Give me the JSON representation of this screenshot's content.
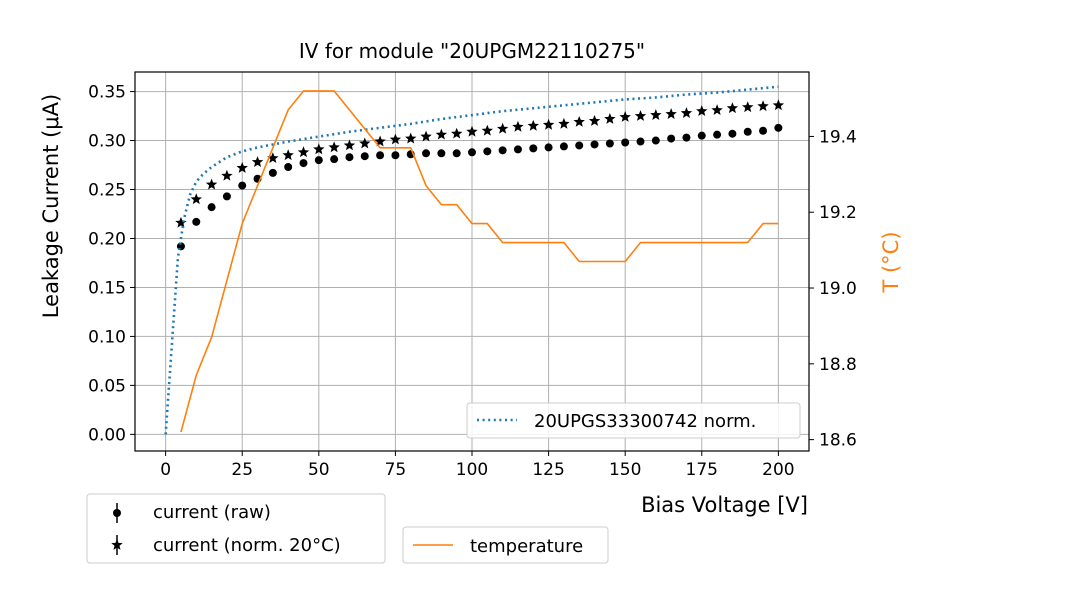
{
  "chart_data": {
    "type": "line",
    "title": "IV for module \"20UPGM22110275\"",
    "xlabel": "Bias Voltage [V]",
    "ylabel": "Leakage Current (μA)",
    "y2label": "T (°C)",
    "xlim": [
      -10,
      210
    ],
    "ylim": [
      -0.017,
      0.37
    ],
    "y2lim": [
      18.57,
      19.57
    ],
    "grid": true,
    "x_ticks": [
      0,
      25,
      50,
      75,
      100,
      125,
      150,
      175,
      200
    ],
    "x_tick_labels": [
      "0",
      "25",
      "50",
      "75",
      "100",
      "125",
      "150",
      "175",
      "200"
    ],
    "y_ticks": [
      0.0,
      0.05,
      0.1,
      0.15,
      0.2,
      0.25,
      0.3,
      0.35
    ],
    "y_tick_labels": [
      "0.00",
      "0.05",
      "0.10",
      "0.15",
      "0.20",
      "0.25",
      "0.30",
      "0.35"
    ],
    "y2_ticks": [
      18.6,
      18.8,
      19.0,
      19.2,
      19.4
    ],
    "y2_tick_labels": [
      "18.6",
      "18.8",
      "19.0",
      "19.2",
      "19.4"
    ],
    "colors": {
      "axis": "#000000",
      "grid": "#b0b0b0",
      "reference": "#1f77b4",
      "temperature": "#ff7f0e",
      "markers": "#000000"
    },
    "series": [
      {
        "name": "current (raw)",
        "marker": "circle",
        "axis": "left",
        "x": [
          5,
          10,
          15,
          20,
          25,
          30,
          35,
          40,
          45,
          50,
          55,
          60,
          65,
          70,
          75,
          80,
          85,
          90,
          95,
          100,
          105,
          110,
          115,
          120,
          125,
          130,
          135,
          140,
          145,
          150,
          155,
          160,
          165,
          170,
          175,
          180,
          185,
          190,
          195,
          200
        ],
        "values": [
          0.192,
          0.217,
          0.232,
          0.243,
          0.254,
          0.261,
          0.267,
          0.273,
          0.277,
          0.28,
          0.281,
          0.283,
          0.284,
          0.285,
          0.285,
          0.286,
          0.287,
          0.287,
          0.287,
          0.288,
          0.289,
          0.29,
          0.291,
          0.292,
          0.293,
          0.294,
          0.295,
          0.296,
          0.297,
          0.298,
          0.299,
          0.3,
          0.302,
          0.303,
          0.305,
          0.306,
          0.307,
          0.309,
          0.31,
          0.313
        ]
      },
      {
        "name": "current (norm. 20°C)",
        "marker": "star",
        "axis": "left",
        "x": [
          5,
          10,
          15,
          20,
          25,
          30,
          35,
          40,
          45,
          50,
          55,
          60,
          65,
          70,
          75,
          80,
          85,
          90,
          95,
          100,
          105,
          110,
          115,
          120,
          125,
          130,
          135,
          140,
          145,
          150,
          155,
          160,
          165,
          170,
          175,
          180,
          185,
          190,
          195,
          200
        ],
        "values": [
          0.216,
          0.24,
          0.255,
          0.264,
          0.272,
          0.278,
          0.282,
          0.285,
          0.288,
          0.291,
          0.293,
          0.295,
          0.297,
          0.299,
          0.301,
          0.302,
          0.304,
          0.306,
          0.307,
          0.309,
          0.31,
          0.312,
          0.314,
          0.315,
          0.316,
          0.317,
          0.319,
          0.32,
          0.322,
          0.324,
          0.325,
          0.326,
          0.327,
          0.328,
          0.33,
          0.331,
          0.333,
          0.334,
          0.335,
          0.336
        ]
      },
      {
        "name": "20UPGS33300742 norm.",
        "style": "dotted",
        "axis": "left",
        "x": [
          0,
          2,
          4,
          6,
          8,
          10,
          12,
          15,
          18,
          20,
          25,
          30,
          35,
          40,
          50,
          60,
          70,
          80,
          90,
          100,
          110,
          120,
          130,
          140,
          150,
          160,
          170,
          180,
          190,
          200
        ],
        "values": [
          0.0,
          0.09,
          0.18,
          0.22,
          0.245,
          0.258,
          0.265,
          0.273,
          0.279,
          0.283,
          0.289,
          0.293,
          0.296,
          0.299,
          0.304,
          0.309,
          0.313,
          0.317,
          0.322,
          0.326,
          0.33,
          0.333,
          0.336,
          0.339,
          0.342,
          0.344,
          0.347,
          0.349,
          0.352,
          0.355
        ]
      },
      {
        "name": "temperature",
        "style": "solid",
        "axis": "right",
        "x": [
          5,
          10,
          15,
          20,
          25,
          30,
          35,
          40,
          45,
          50,
          55,
          60,
          65,
          70,
          75,
          80,
          85,
          90,
          95,
          100,
          105,
          110,
          115,
          120,
          125,
          130,
          135,
          140,
          145,
          150,
          155,
          160,
          165,
          170,
          175,
          180,
          185,
          190,
          195,
          200
        ],
        "values": [
          18.62,
          18.77,
          18.87,
          19.02,
          19.17,
          19.27,
          19.37,
          19.47,
          19.52,
          19.52,
          19.52,
          19.47,
          19.42,
          19.37,
          19.37,
          19.37,
          19.27,
          19.22,
          19.22,
          19.17,
          19.17,
          19.12,
          19.12,
          19.12,
          19.12,
          19.12,
          19.07,
          19.07,
          19.07,
          19.07,
          19.12,
          19.12,
          19.12,
          19.12,
          19.12,
          19.12,
          19.12,
          19.12,
          19.17,
          19.17
        ]
      }
    ],
    "legends": {
      "reference": {
        "placement": "inside-lower-right",
        "entries": [
          "20UPGS33300742 norm."
        ]
      },
      "current": {
        "placement": "below-left",
        "entries": [
          "current (raw)",
          "current (norm. 20°C)"
        ]
      },
      "temperature": {
        "placement": "below-center",
        "entries": [
          "temperature"
        ]
      }
    }
  }
}
